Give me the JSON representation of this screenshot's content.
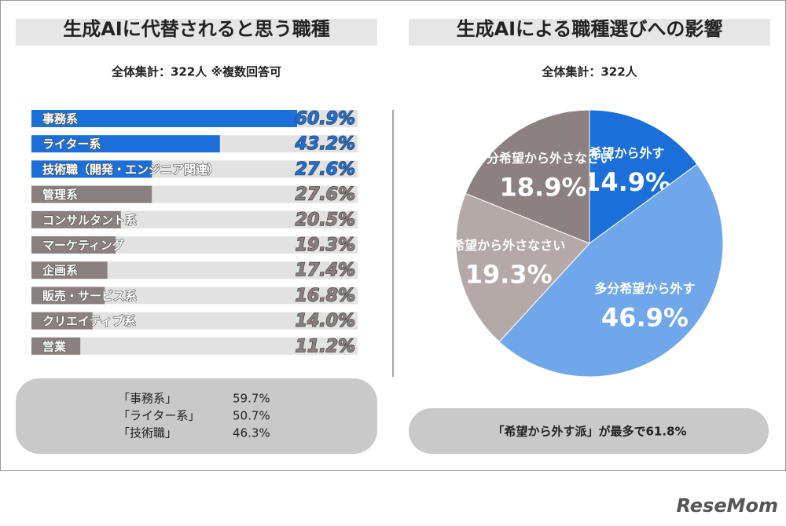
{
  "chart_data": [
    {
      "type": "bar",
      "title": "生成AIに代替されると思う職種",
      "subtitle": "全体集計：322人 ※複数回答可",
      "categories": [
        "事務系",
        "ライター系",
        "技術職（開発・エンジニア関連）",
        "管理系",
        "コンサルタント系",
        "マーケティング",
        "企画系",
        "販売・サービス系",
        "クリエイティブ系",
        "営業"
      ],
      "values": [
        60.9,
        43.2,
        27.6,
        27.6,
        20.5,
        19.3,
        17.4,
        16.8,
        14.0,
        11.2
      ],
      "value_labels": [
        "60.9%",
        "43.2%",
        "27.6%",
        "27.6%",
        "20.5%",
        "19.3%",
        "17.4%",
        "16.8%",
        "14.0%",
        "11.2%"
      ],
      "colors": [
        "#1a6fd8",
        "#1a6fd8",
        "#1a6fd8",
        "#8b8080",
        "#8b8080",
        "#8b8080",
        "#8b8080",
        "#8b8080",
        "#8b8080",
        "#8b8080"
      ],
      "notes": [
        {
          "label": "「事務系」",
          "text": "59.7%"
        },
        {
          "label": "「ライター系」",
          "text": "50.7%"
        },
        {
          "label": "「技術職」",
          "text": "46.3%"
        }
      ]
    },
    {
      "type": "pie",
      "title": "生成AIによる職種選びへの影響",
      "subtitle": "全体集計：322人",
      "categories": [
        "希望から外す",
        "多分希望から外す",
        "希望から外さなさい",
        "多分希望から外さなさい"
      ],
      "values": [
        14.9,
        46.9,
        19.3,
        18.9
      ],
      "value_labels": [
        "14.9%",
        "46.9%",
        "19.3%",
        "18.9%"
      ],
      "colors": [
        "#1a6fd8",
        "#70a7ea",
        "#b5a9a7",
        "#8c8080"
      ],
      "notes": [
        {
          "text": "「希望から外す派」が最多で61.8%"
        }
      ]
    }
  ],
  "logo": "ReseMom"
}
